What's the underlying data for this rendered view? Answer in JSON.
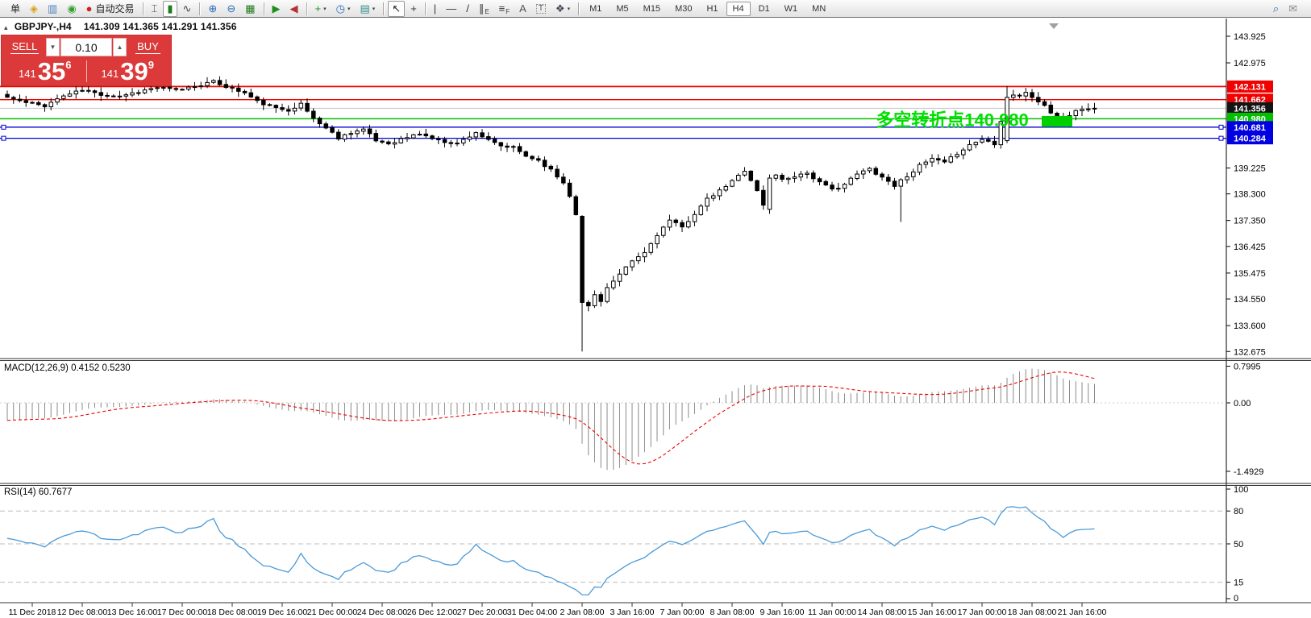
{
  "toolbar": {
    "caret_glyph": "▾",
    "items": [
      {
        "name": "new-order-button",
        "label": "单"
      },
      {
        "name": "profiles-icon",
        "glyph": "◈",
        "color": "#d9a21b"
      },
      {
        "name": "new-chart-icon",
        "glyph": "▥",
        "color": "#4a7fbf"
      },
      {
        "name": "signals-icon",
        "glyph": "◉",
        "color": "#33a033"
      },
      {
        "name": "autotrading-button",
        "glyph": "●",
        "color": "#cc2222",
        "label": "自动交易"
      },
      {
        "sep": true
      },
      {
        "name": "bar-chart-icon",
        "glyph": "⌶",
        "color": "#444"
      },
      {
        "name": "candlestick-chart-icon",
        "glyph": "▮",
        "color": "#1e7d1e",
        "active": true
      },
      {
        "name": "line-chart-icon",
        "glyph": "∿",
        "color": "#444"
      },
      {
        "sep": true
      },
      {
        "name": "zoom-in-icon",
        "glyph": "⊕",
        "color": "#2a6ab6"
      },
      {
        "name": "zoom-out-icon",
        "glyph": "⊖",
        "color": "#2a6ab6"
      },
      {
        "name": "tile-windows-icon",
        "glyph": "▦",
        "color": "#1e7d1e"
      },
      {
        "sep": true
      },
      {
        "name": "auto-scroll-icon",
        "glyph": "▶",
        "color": "#1e8d1e"
      },
      {
        "name": "chart-shift-icon",
        "glyph": "◀",
        "color": "#b23333"
      },
      {
        "sep": true
      },
      {
        "name": "add-indicator-icon",
        "glyph": "+",
        "color": "#1a9a1a",
        "caret": true
      },
      {
        "name": "period-clock-icon",
        "glyph": "◷",
        "color": "#2a6ab6",
        "caret": true
      },
      {
        "name": "template-icon",
        "glyph": "▤",
        "color": "#2f8d8d",
        "caret": true
      },
      {
        "sep": true
      },
      {
        "name": "cursor-icon",
        "glyph": "↖",
        "color": "#222",
        "active": true
      },
      {
        "name": "crosshair-icon",
        "glyph": "+",
        "color": "#333"
      },
      {
        "sep": true
      },
      {
        "name": "vertical-line-icon",
        "glyph": "|",
        "color": "#333"
      },
      {
        "name": "horizontal-line-icon",
        "glyph": "—",
        "color": "#333"
      },
      {
        "name": "trendline-icon",
        "glyph": "/",
        "color": "#333"
      },
      {
        "name": "equidistant-channel-icon",
        "glyph": "∥",
        "sub": "E",
        "color": "#333"
      },
      {
        "name": "fibonacci-icon",
        "glyph": "≡",
        "sub": "F",
        "color": "#333"
      },
      {
        "name": "text-icon",
        "glyph": "A",
        "color": "#555"
      },
      {
        "name": "text-label-icon",
        "glyph": "T",
        "color": "#555",
        "boxed": true
      },
      {
        "name": "arrows-icon",
        "glyph": "❖",
        "color": "#445",
        "caret": true
      },
      {
        "sep": true
      }
    ],
    "timeframes": [
      {
        "label": "M1"
      },
      {
        "label": "M5"
      },
      {
        "label": "M15"
      },
      {
        "label": "M30"
      },
      {
        "label": "H1"
      },
      {
        "label": "H4",
        "active": true
      },
      {
        "label": "D1"
      },
      {
        "label": "W1"
      },
      {
        "label": "MN"
      }
    ],
    "right_icons": [
      {
        "name": "search-icon",
        "glyph": "⌕",
        "color": "#2a6ab6"
      },
      {
        "name": "community-chat-icon",
        "glyph": "✉",
        "color": "#8a8a8a"
      }
    ]
  },
  "chart_header": {
    "collapse_icon": "▴",
    "symbol_period": "GBPJPY-,H4",
    "ohlc": "141.309 141.365 141.291 141.356"
  },
  "trade_panel": {
    "sell_label": "SELL",
    "buy_label": "BUY",
    "volume": "0.10",
    "down_glyph": "▼",
    "up_glyph": "▲",
    "sell_small": "141",
    "sell_big": "35",
    "sell_sup": "6",
    "buy_small": "141",
    "buy_big": "39",
    "buy_sup": "9"
  },
  "price_axis": {
    "labels": [
      143.925,
      142.975,
      139.225,
      138.3,
      137.35,
      136.425,
      135.475,
      134.55,
      133.6,
      132.675
    ]
  },
  "hlines": [
    {
      "price": 142.131,
      "label": "142.131",
      "line_color": "#f40000",
      "badge_color": "#f00000",
      "width": 1.8
    },
    {
      "price": 141.662,
      "label": "141.662",
      "line_color": "#f40000",
      "badge_color": "#f00000",
      "width": 1.3
    },
    {
      "price": 141.356,
      "label": "141.356",
      "line_color": "#c4c4c4",
      "badge_color": "#141414",
      "width": 1.0,
      "role": "bid-price-line"
    },
    {
      "price": 140.98,
      "label": "140.980",
      "line_color": "#00c000",
      "badge_color": "#00c000",
      "width": 1.5
    },
    {
      "price": 140.681,
      "label": "140.681",
      "line_color": "#0000d0",
      "badge_color": "#0000e0",
      "width": 1.3,
      "selected": true
    },
    {
      "price": 140.284,
      "label": "140.284",
      "line_color": "#0000d0",
      "badge_color": "#0000e0",
      "width": 1.3,
      "selected": true
    }
  ],
  "annotation": {
    "text": "多空转折点140.980",
    "color": "#00e000",
    "price": 140.98,
    "candle_index": 139
  },
  "shift_marker_glyph": "▼",
  "indicators": {
    "macd": {
      "header": "MACD(12,26,9) 0.4152 0.5230",
      "params": {
        "fast": 12,
        "slow": 26,
        "signal": 9
      },
      "value": 0.4152,
      "signal_value": 0.523,
      "axis": [
        {
          "v": 0.7995,
          "label": "0.7995"
        },
        {
          "v": 0,
          "label": "0.00"
        },
        {
          "v": -1.4929,
          "label": "-1.4929"
        }
      ],
      "histogram_color": "#8a8a8a",
      "signal_color": "#f00000"
    },
    "rsi": {
      "header": "RSI(14) 60.7677",
      "period": 14,
      "value": 60.7677,
      "axis": [
        {
          "v": 100,
          "label": "100"
        },
        {
          "v": 80,
          "label": "80"
        },
        {
          "v": 50,
          "label": "50"
        },
        {
          "v": 15,
          "label": "15"
        },
        {
          "v": 0,
          "label": "0"
        }
      ],
      "levels": [
        80,
        50,
        15
      ],
      "line_color": "#4a9ad8"
    }
  },
  "time_axis": {
    "ticks": [
      [
        4,
        "11 Dec 2018"
      ],
      [
        12,
        "12 Dec 08:00"
      ],
      [
        20,
        "13 Dec 16:00"
      ],
      [
        28,
        "17 Dec 00:00"
      ],
      [
        36,
        "18 Dec 08:00"
      ],
      [
        44,
        "19 Dec 16:00"
      ],
      [
        52,
        "21 Dec 00:00"
      ],
      [
        60,
        "24 Dec 08:00"
      ],
      [
        68,
        "26 Dec 12:00"
      ],
      [
        76,
        "27 Dec 20:00"
      ],
      [
        84,
        "31 Dec 04:00"
      ],
      [
        92,
        "2 Jan 08:00"
      ],
      [
        100,
        "3 Jan 16:00"
      ],
      [
        108,
        "7 Jan 00:00"
      ],
      [
        116,
        "8 Jan 08:00"
      ],
      [
        124,
        "9 Jan 16:00"
      ],
      [
        132,
        "11 Jan 00:00"
      ],
      [
        140,
        "14 Jan 08:00"
      ],
      [
        148,
        "15 Jan 16:00"
      ],
      [
        156,
        "17 Jan 00:00"
      ],
      [
        164,
        "18 Jan 08:00"
      ],
      [
        172,
        "21 Jan 16:00"
      ]
    ]
  },
  "chart_data": {
    "type": "candlestick-ohlc",
    "symbol": "GBPJPY",
    "period": "H4",
    "ylim": [
      132.675,
      143.925
    ],
    "candle_count": 175,
    "noise_seed": 11,
    "price_anchors": [
      [
        0,
        141.75
      ],
      [
        3,
        141.55
      ],
      [
        6,
        141.45
      ],
      [
        9,
        141.8
      ],
      [
        12,
        142.0
      ],
      [
        15,
        141.85
      ],
      [
        18,
        141.8
      ],
      [
        21,
        141.95
      ],
      [
        24,
        142.1
      ],
      [
        27,
        142.0
      ],
      [
        30,
        142.15
      ],
      [
        33,
        142.3
      ],
      [
        36,
        142.05
      ],
      [
        38,
        141.9
      ],
      [
        40,
        141.6
      ],
      [
        43,
        141.35
      ],
      [
        45,
        141.3
      ],
      [
        47,
        141.5
      ],
      [
        49,
        141.0
      ],
      [
        51,
        140.65
      ],
      [
        53,
        140.3
      ],
      [
        55,
        140.5
      ],
      [
        57,
        140.6
      ],
      [
        59,
        140.2
      ],
      [
        61,
        140.1
      ],
      [
        63,
        140.25
      ],
      [
        66,
        140.45
      ],
      [
        69,
        140.2
      ],
      [
        72,
        140.1
      ],
      [
        75,
        140.5
      ],
      [
        77,
        140.2
      ],
      [
        79,
        140.0
      ],
      [
        81,
        139.95
      ],
      [
        83,
        139.65
      ],
      [
        85,
        139.5
      ],
      [
        87,
        139.15
      ],
      [
        89,
        138.7
      ],
      [
        90,
        138.25
      ],
      [
        91,
        137.6
      ],
      [
        92,
        134.4
      ],
      [
        93,
        134.3
      ],
      [
        94,
        134.7
      ],
      [
        95,
        134.5
      ],
      [
        96,
        134.95
      ],
      [
        98,
        135.4
      ],
      [
        100,
        135.9
      ],
      [
        102,
        136.2
      ],
      [
        104,
        136.85
      ],
      [
        106,
        137.35
      ],
      [
        108,
        137.1
      ],
      [
        110,
        137.6
      ],
      [
        112,
        138.1
      ],
      [
        114,
        138.4
      ],
      [
        116,
        138.75
      ],
      [
        118,
        139.15
      ],
      [
        119,
        138.8
      ],
      [
        120,
        138.4
      ],
      [
        121,
        137.9
      ],
      [
        122,
        138.85
      ],
      [
        123,
        139.0
      ],
      [
        124,
        138.8
      ],
      [
        126,
        138.95
      ],
      [
        128,
        139.05
      ],
      [
        130,
        138.7
      ],
      [
        132,
        138.45
      ],
      [
        134,
        138.65
      ],
      [
        136,
        139.0
      ],
      [
        138,
        139.2
      ],
      [
        140,
        138.9
      ],
      [
        142,
        138.6
      ],
      [
        144,
        138.95
      ],
      [
        146,
        139.3
      ],
      [
        148,
        139.55
      ],
      [
        150,
        139.4
      ],
      [
        152,
        139.75
      ],
      [
        154,
        140.05
      ],
      [
        156,
        140.25
      ],
      [
        158,
        140.1
      ],
      [
        160,
        141.75
      ],
      [
        161,
        141.85
      ],
      [
        162,
        141.8
      ],
      [
        163,
        141.9
      ],
      [
        164,
        141.75
      ],
      [
        165,
        141.6
      ],
      [
        166,
        141.45
      ],
      [
        167,
        141.2
      ],
      [
        168,
        141.0
      ],
      [
        169,
        140.85
      ],
      [
        170,
        141.1
      ],
      [
        171,
        141.3
      ],
      [
        172,
        141.3
      ],
      [
        173,
        141.35
      ],
      [
        174,
        141.356
      ]
    ],
    "specials": {
      "0": {
        "open": 141.85
      },
      "91": {
        "open": 138.2
      },
      "92": {
        "open": 137.5,
        "low": 132.675
      },
      "122": {
        "open": 137.75
      },
      "143": {
        "low": 137.3
      },
      "160": {
        "open": 140.2,
        "high": 142.15
      }
    },
    "highlight_box": {
      "from_candle": 166,
      "to_candle": 170,
      "price_top": 141.08,
      "price_bottom": 140.7,
      "color": "#00d000"
    }
  },
  "colors": {
    "bull_candle": "#ffffff",
    "bear_candle": "#000000",
    "wick": "#000000",
    "panel_red": "#dc3a3a",
    "axis_text": "#000000",
    "separator": "#333333"
  }
}
